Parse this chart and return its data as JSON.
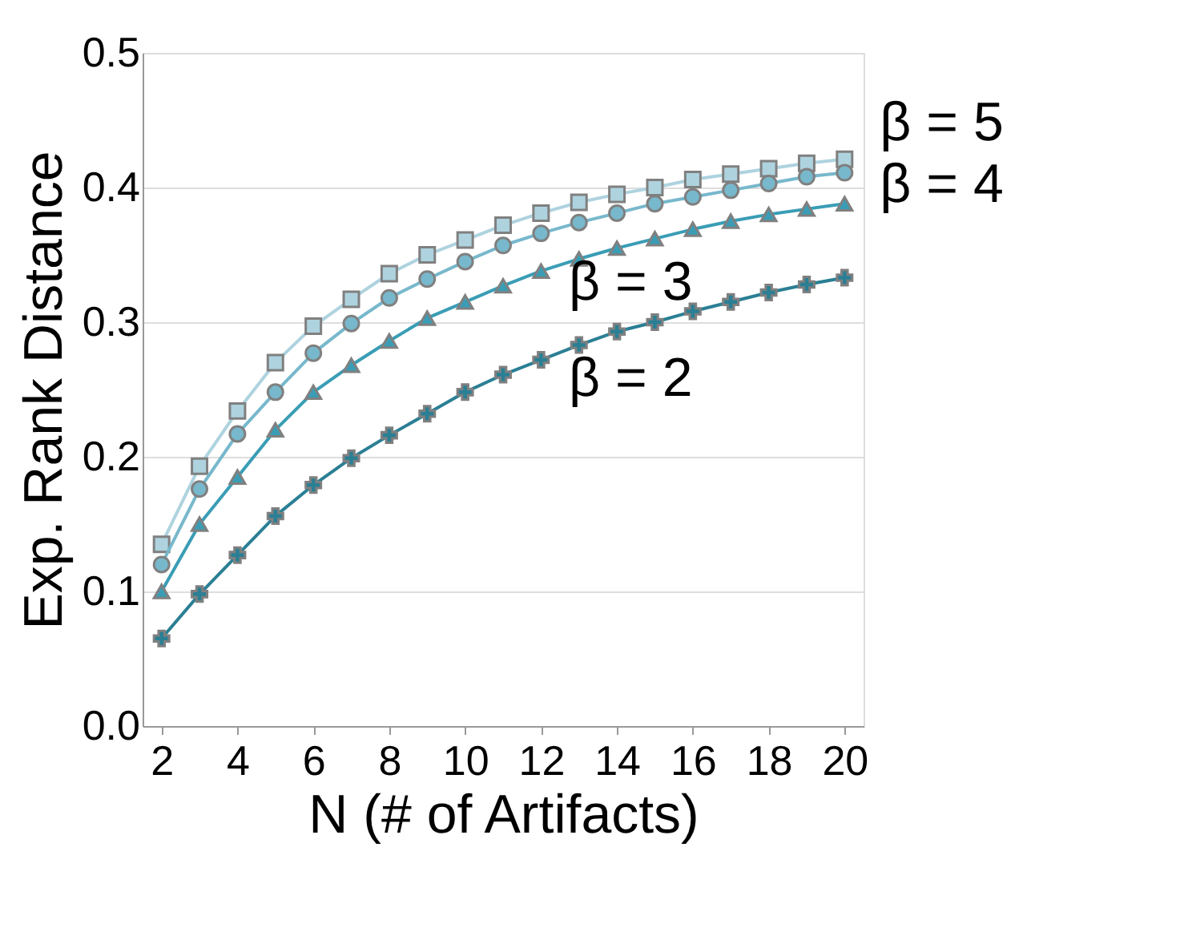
{
  "chart_data": {
    "type": "line",
    "xlabel": "N (# of Artifacts)",
    "ylabel": "Exp. Rank Distance",
    "x": [
      2,
      3,
      4,
      5,
      6,
      7,
      8,
      9,
      10,
      11,
      12,
      13,
      14,
      15,
      16,
      17,
      18,
      19,
      20
    ],
    "xlim": [
      1.5,
      20.5
    ],
    "xticks": [
      2,
      4,
      6,
      8,
      10,
      12,
      14,
      16,
      18,
      20
    ],
    "ylim": [
      0,
      0.5
    ],
    "yticks": [
      {
        "value": 0,
        "label": "0.0"
      },
      0.1,
      0.2,
      0.3,
      0.4,
      0.5
    ],
    "grid": "y",
    "line_style": "solid",
    "series": [
      {
        "name": "β = 5",
        "color": "#aed3df",
        "marker": "square",
        "values": [
          0.135,
          0.193,
          0.234,
          0.27,
          0.297,
          0.317,
          0.336,
          0.35,
          0.361,
          0.372,
          0.381,
          0.389,
          0.395,
          0.4,
          0.406,
          0.41,
          0.414,
          0.418,
          0.421
        ]
      },
      {
        "name": "β = 4",
        "color": "#77b8cc",
        "marker": "circle",
        "values": [
          0.12,
          0.176,
          0.217,
          0.248,
          0.277,
          0.299,
          0.318,
          0.332,
          0.345,
          0.357,
          0.366,
          0.374,
          0.381,
          0.388,
          0.393,
          0.398,
          0.403,
          0.408,
          0.411
        ]
      },
      {
        "name": "β = 3",
        "color": "#3a9db5",
        "marker": "triangle",
        "values": [
          0.1,
          0.15,
          0.185,
          0.22,
          0.248,
          0.268,
          0.286,
          0.303,
          0.315,
          0.327,
          0.338,
          0.347,
          0.355,
          0.362,
          0.369,
          0.375,
          0.38,
          0.384,
          0.388
        ]
      },
      {
        "name": "β = 2",
        "color": "#2b7f94",
        "marker": "cross",
        "values": [
          0.065,
          0.098,
          0.127,
          0.156,
          0.179,
          0.199,
          0.216,
          0.232,
          0.248,
          0.261,
          0.272,
          0.283,
          0.293,
          0.3,
          0.308,
          0.315,
          0.322,
          0.328,
          0.333
        ]
      }
    ]
  }
}
